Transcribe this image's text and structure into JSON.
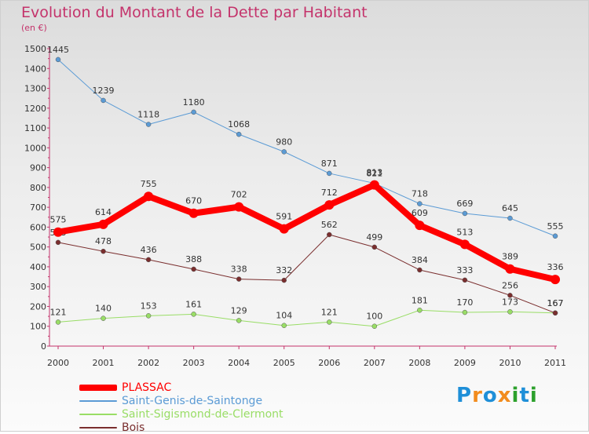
{
  "chart_data": {
    "type": "line",
    "title": "Evolution du Montant de la Dette par Habitant",
    "unit_label": "(en €)",
    "x": [
      "2000",
      "2001",
      "2002",
      "2003",
      "2004",
      "2005",
      "2006",
      "2007",
      "2008",
      "2009",
      "2010",
      "2011"
    ],
    "ylim": [
      0,
      1500
    ],
    "yticks": [
      0,
      100,
      200,
      300,
      400,
      500,
      600,
      700,
      800,
      900,
      1000,
      1100,
      1200,
      1300,
      1400,
      1500
    ],
    "grid": false,
    "legend_position": "bottom-left",
    "series": [
      {
        "name": "PLASSAC",
        "color": "#ff0000",
        "values": [
          575,
          614,
          755,
          670,
          702,
          591,
          712,
          813,
          609,
          513,
          389,
          336
        ]
      },
      {
        "name": "Saint-Genis-de-Saintonge",
        "color": "#5b9bd5",
        "values": [
          1445,
          1239,
          1118,
          1180,
          1068,
          980,
          871,
          821,
          718,
          669,
          645,
          555
        ]
      },
      {
        "name": "Saint-Sigismond-de-Clermont",
        "color": "#99dd66",
        "values": [
          121,
          140,
          153,
          161,
          129,
          104,
          121,
          100,
          181,
          170,
          173,
          167
        ]
      },
      {
        "name": "Bois",
        "color": "#7a2e2e",
        "values": [
          523,
          478,
          436,
          388,
          338,
          332,
          562,
          499,
          384,
          333,
          256,
          167
        ]
      }
    ]
  },
  "logo": {
    "letters": [
      "P",
      "r",
      "o",
      "x",
      "i",
      "t",
      "i"
    ],
    "colors": [
      "#1f8fd8",
      "#f28c1e",
      "#1f8fd8",
      "#f28c1e",
      "#2ca02c",
      "#1f8fd8",
      "#2ca02c"
    ]
  }
}
